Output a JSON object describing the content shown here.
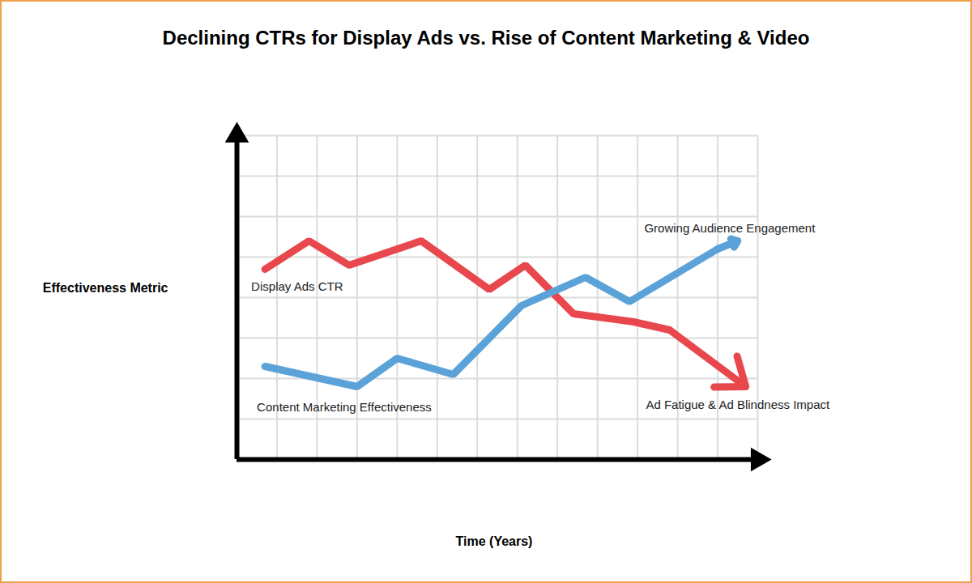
{
  "chart_data": {
    "type": "line",
    "title": "Declining CTRs for Display Ads vs. Rise of Content Marketing & Video",
    "xlabel": "Time (Years)",
    "ylabel": "Effectiveness Metric",
    "xlim": [
      0,
      13
    ],
    "ylim": [
      0,
      8
    ],
    "xticks": [
      0,
      1,
      2,
      3,
      4,
      5,
      6,
      7,
      8,
      9,
      10,
      11,
      12,
      13
    ],
    "yticks": [
      0,
      1,
      2,
      3,
      4,
      5,
      6,
      7,
      8
    ],
    "grid": true,
    "tick_labels": false,
    "series": [
      {
        "name": "Display Ads CTR",
        "color": "#e8484d",
        "marker": "arrow",
        "x": [
          0.7,
          1.8,
          2.8,
          4.6,
          6.3,
          7.2,
          8.4,
          9.9,
          10.8,
          12.7
        ],
        "values": [
          4.7,
          5.4,
          4.8,
          5.4,
          4.2,
          4.8,
          3.6,
          3.4,
          3.2,
          1.8
        ]
      },
      {
        "name": "Content Marketing Effectiveness",
        "color": "#5aa2d8",
        "marker": "arrow",
        "x": [
          0.7,
          3.0,
          4.0,
          5.4,
          7.1,
          8.7,
          9.8,
          12.0,
          12.5
        ],
        "values": [
          2.3,
          1.8,
          2.5,
          2.1,
          3.8,
          4.5,
          3.9,
          5.2,
          5.4
        ]
      }
    ],
    "annotations": [
      {
        "text": "Growing Audience Engagement",
        "x": 12.3,
        "y": 5.7
      },
      {
        "text": "Ad Fatigue & Ad Blindness Impact",
        "x": 12.5,
        "y": 1.35
      }
    ]
  }
}
